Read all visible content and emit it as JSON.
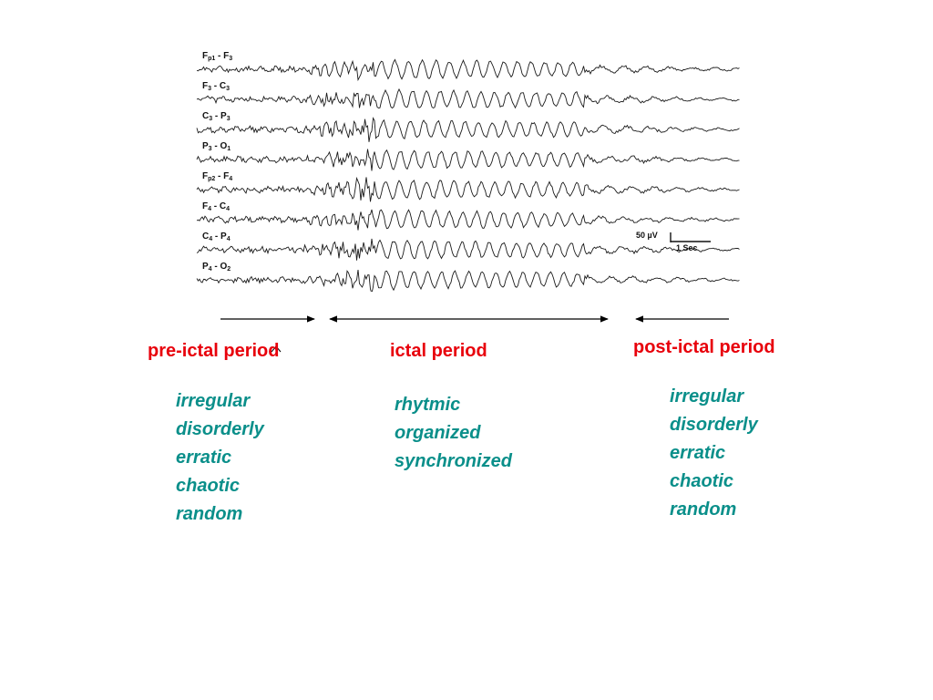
{
  "eeg": {
    "channels": [
      "Fp1 - F3",
      "F3 - C3",
      "C3 - P3",
      "P3 - O1",
      "Fp2 - F4",
      "F4 - C4",
      "C4 - P4",
      "P4 - O2"
    ],
    "channel_parts": [
      {
        "a": "F",
        "a_sub": "p1",
        "b": "F",
        "b_sub": "3"
      },
      {
        "a": "F",
        "a_sub": "3",
        "b": "C",
        "b_sub": "3"
      },
      {
        "a": "C",
        "a_sub": "3",
        "b": "P",
        "b_sub": "3"
      },
      {
        "a": "P",
        "a_sub": "3",
        "b": "O",
        "b_sub": "1"
      },
      {
        "a": "F",
        "a_sub": "p2",
        "b": "F",
        "b_sub": "4"
      },
      {
        "a": "F",
        "a_sub": "4",
        "b": "C",
        "b_sub": "4"
      },
      {
        "a": "C",
        "a_sub": "4",
        "b": "P",
        "b_sub": "4"
      },
      {
        "a": "P",
        "a_sub": "4",
        "b": "O",
        "b_sub": "2"
      }
    ],
    "scale_amplitude": "50 µV",
    "scale_time": "1 Sec"
  },
  "periods": {
    "pre": {
      "title": "pre-ictal period",
      "terms": [
        "irregular",
        "disorderly",
        "erratic",
        "chaotic",
        "random"
      ]
    },
    "ictal": {
      "title": "ictal period",
      "terms": [
        "rhytmic",
        "organized",
        "synchronized"
      ]
    },
    "post": {
      "title": "post-ictal period",
      "terms": [
        "irregular",
        "disorderly",
        "erratic",
        "chaotic",
        "random"
      ]
    }
  },
  "colors": {
    "title": "#e8000b",
    "terms": "#0a8f8a",
    "trace": "#1a1a1a",
    "arrow": "#000000"
  }
}
